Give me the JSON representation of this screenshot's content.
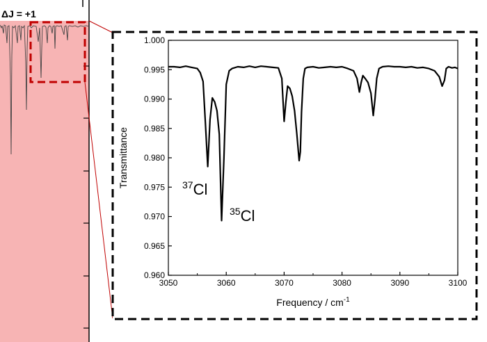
{
  "overview_panel": {
    "label": "ΔJ = +1",
    "label_color": "#c00000",
    "shade_color": "#f7b4b4",
    "highlight_box_color": "#c00000"
  },
  "inset_frame_color": "#000000",
  "chart_data": {
    "type": "line",
    "title": "",
    "xlabel": "Frequency / cm",
    "xlabel_superscript": "-1",
    "ylabel": "Transmittance",
    "xlim": [
      3050,
      3100
    ],
    "ylim": [
      0.96,
      1.0
    ],
    "xticks": [
      3050,
      3060,
      3070,
      3080,
      3090,
      3100
    ],
    "xtick_labels": [
      "3050",
      "3060",
      "3070",
      "3080",
      "3090",
      "3100"
    ],
    "yticks": [
      0.96,
      0.965,
      0.97,
      0.975,
      0.98,
      0.985,
      0.99,
      0.995,
      1.0
    ],
    "ytick_labels": [
      "0.960",
      "0.965",
      "0.970",
      "0.975",
      "0.980",
      "0.985",
      "0.990",
      "0.995",
      "1.000"
    ],
    "grid": false,
    "line_color": "#000000",
    "series": [
      {
        "x": [
          3050,
          3051,
          3052,
          3053,
          3054,
          3055,
          3055.5,
          3056,
          3056.4,
          3056.8,
          3057.2,
          3057.6,
          3058.0,
          3058.4,
          3058.8,
          3059.2,
          3059.6,
          3060.0,
          3060.5,
          3061,
          3062,
          3063,
          3064,
          3065,
          3066,
          3067,
          3068,
          3069,
          3069.6,
          3070.0,
          3070.3,
          3070.6,
          3071.0,
          3071.4,
          3071.8,
          3072.2,
          3072.6,
          3072.8,
          3073.0,
          3073.3,
          3073.6,
          3074,
          3075,
          3076,
          3077,
          3078,
          3079,
          3080,
          3081,
          3082,
          3082.6,
          3083.0,
          3083.3,
          3083.6,
          3084.0,
          3084.5,
          3085.0,
          3085.4,
          3085.7,
          3086.0,
          3086.4,
          3087,
          3088,
          3089,
          3090,
          3091,
          3092,
          3093,
          3094,
          3095,
          3096,
          3096.8,
          3097.3,
          3097.7,
          3098.0,
          3098.4,
          3099,
          3099.5,
          3100
        ],
        "y": [
          0.9955,
          0.9955,
          0.9954,
          0.9956,
          0.9954,
          0.9952,
          0.9945,
          0.993,
          0.986,
          0.9785,
          0.9865,
          0.9902,
          0.9895,
          0.988,
          0.984,
          0.9693,
          0.98,
          0.9925,
          0.9948,
          0.9952,
          0.9955,
          0.9954,
          0.9956,
          0.9954,
          0.9956,
          0.9955,
          0.9954,
          0.9953,
          0.9935,
          0.9862,
          0.9895,
          0.9922,
          0.9918,
          0.9905,
          0.988,
          0.984,
          0.9795,
          0.981,
          0.9878,
          0.9935,
          0.9952,
          0.9954,
          0.9955,
          0.9953,
          0.9954,
          0.9955,
          0.9954,
          0.9955,
          0.9952,
          0.9948,
          0.9935,
          0.9912,
          0.9928,
          0.994,
          0.9935,
          0.9928,
          0.991,
          0.9872,
          0.99,
          0.9935,
          0.9952,
          0.9955,
          0.9956,
          0.9955,
          0.9955,
          0.9954,
          0.9955,
          0.9953,
          0.9954,
          0.9952,
          0.9948,
          0.9938,
          0.9922,
          0.9932,
          0.9952,
          0.9955,
          0.9953,
          0.9954,
          0.9952
        ]
      }
    ],
    "annotations": [
      {
        "base": "Cl",
        "sup": "37"
      },
      {
        "base": "Cl",
        "sup": "35"
      }
    ]
  }
}
